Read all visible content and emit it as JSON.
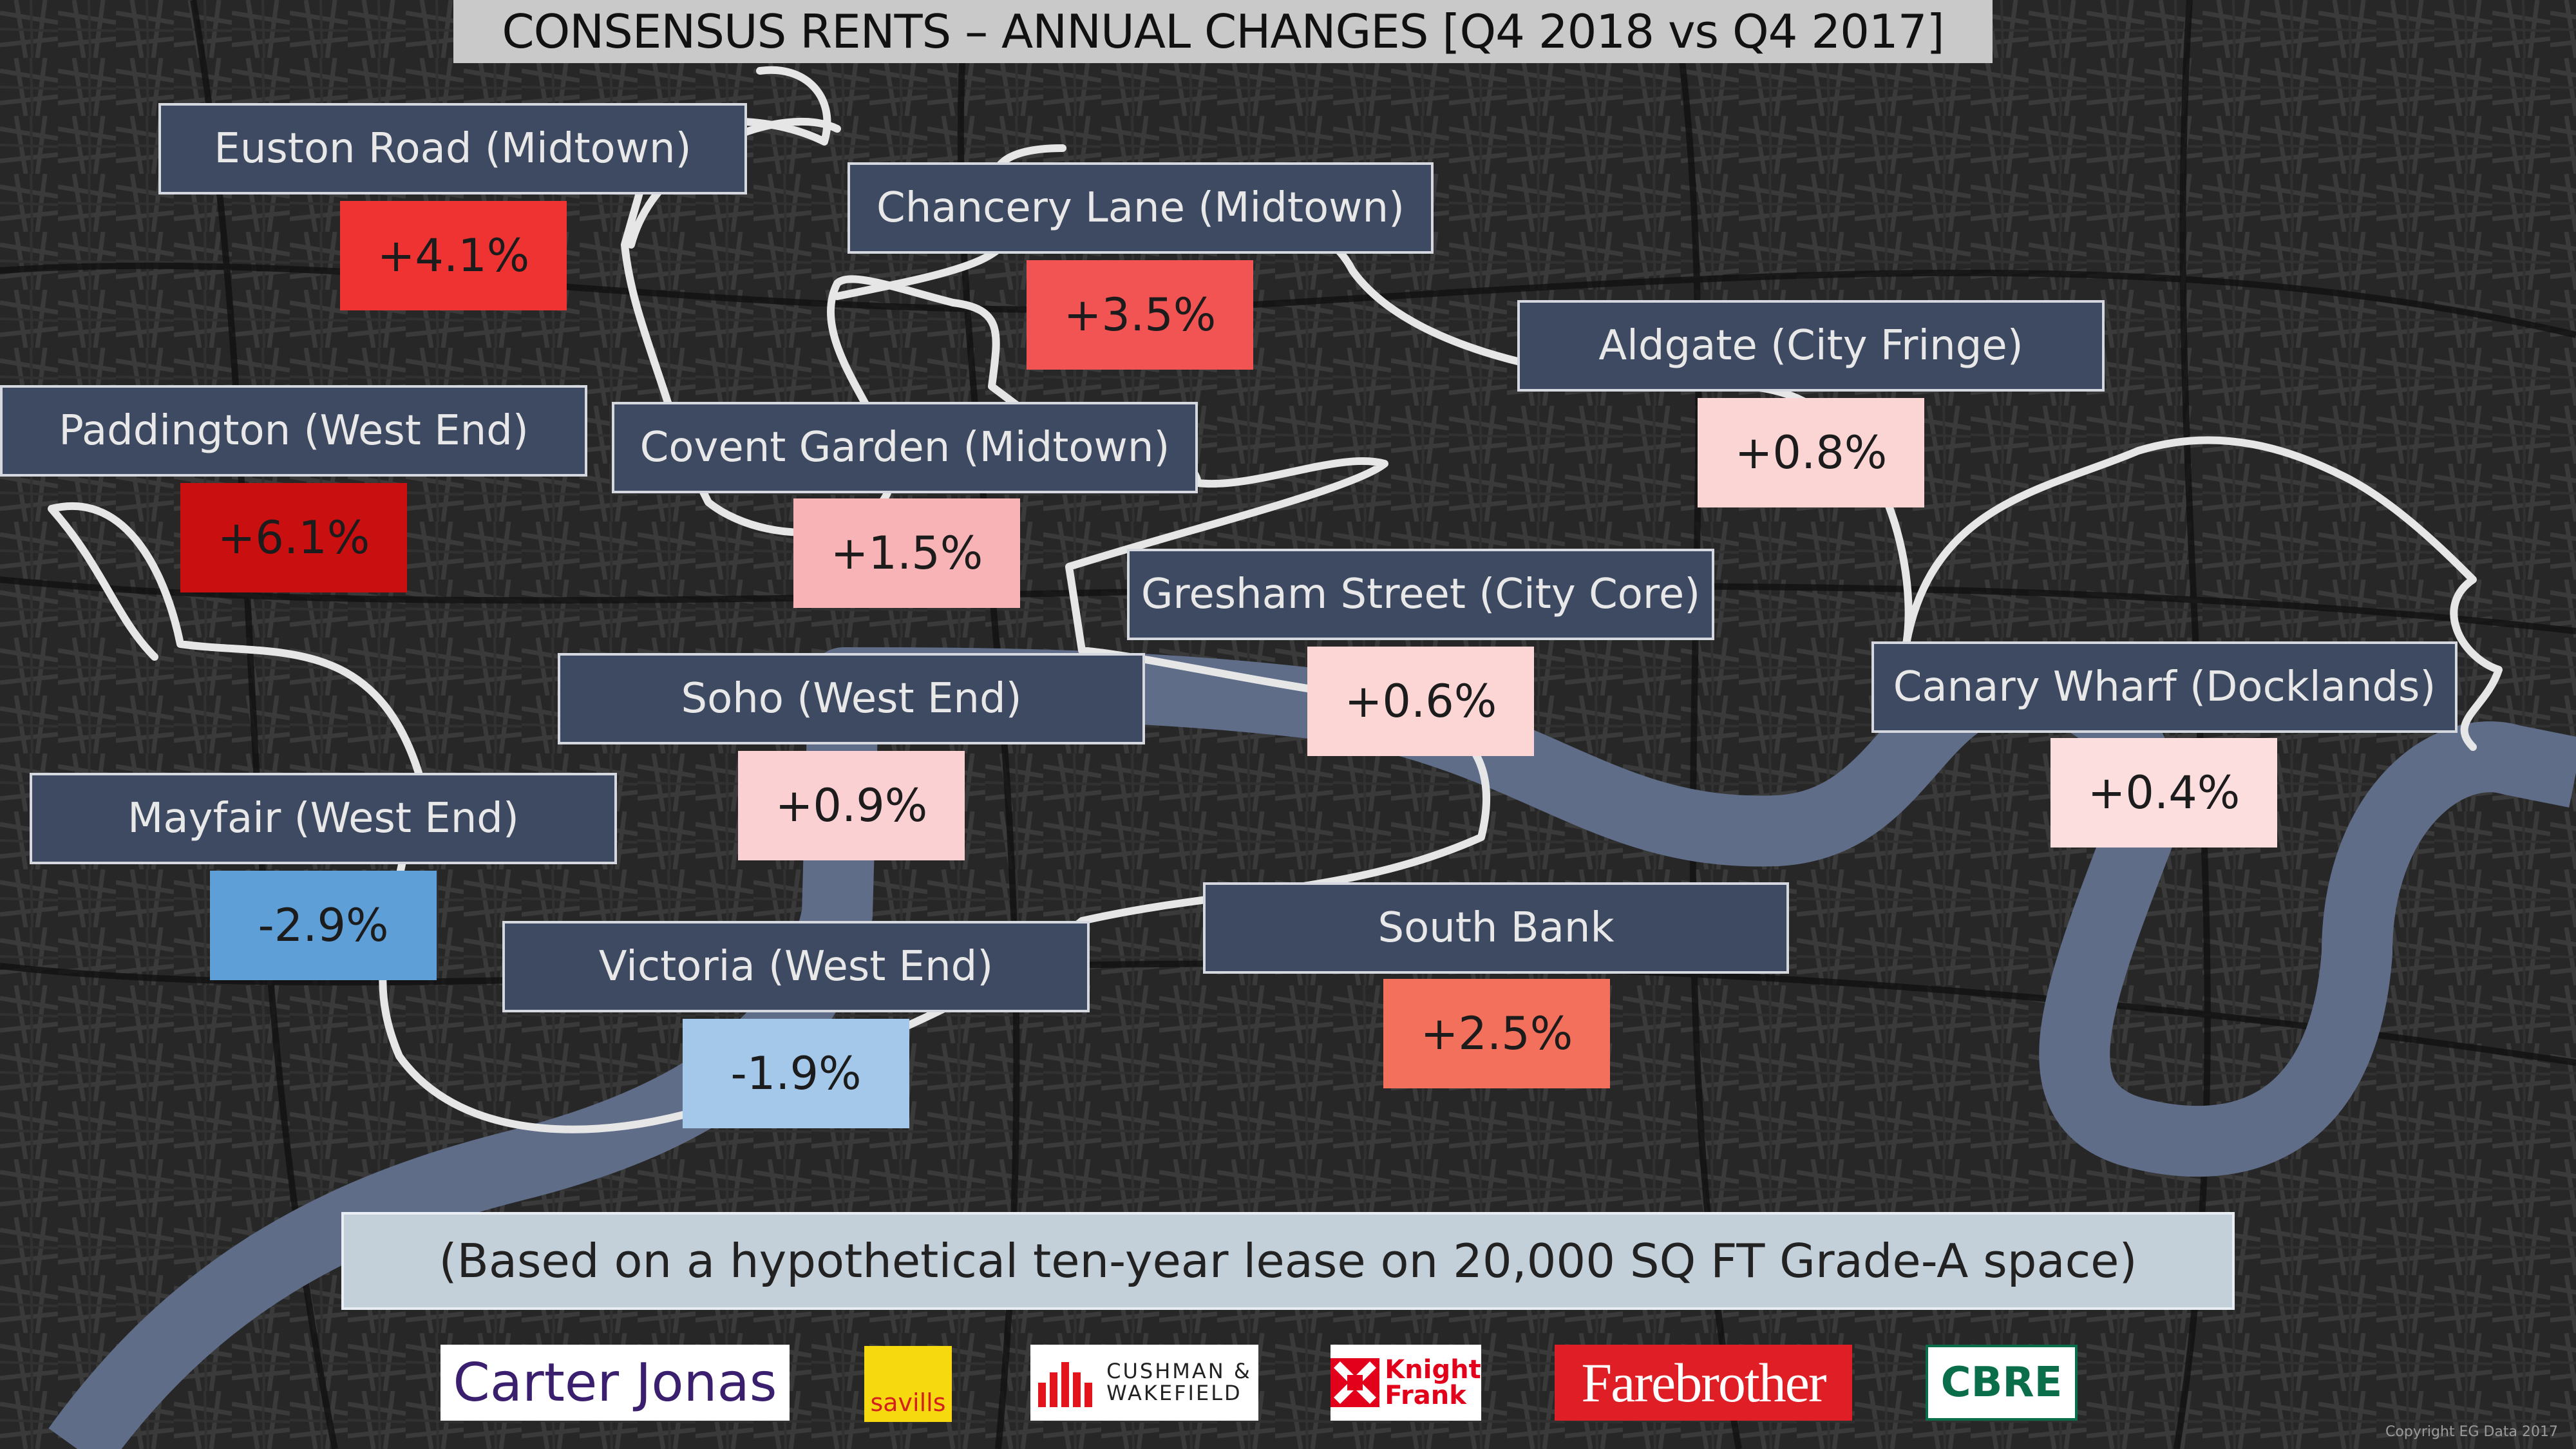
{
  "title": "CONSENSUS RENTS – ANNUAL CHANGES [Q4 2018 vs Q4 2017]",
  "colors": {
    "river": "#5f6d88",
    "boundary": "#e6e6e6",
    "name_box": "#3d4a61"
  },
  "areas": [
    {
      "name": "Euston Road (Midtown)",
      "change": "+4.1%",
      "color": "#ef3333"
    },
    {
      "name": "Chancery Lane (Midtown)",
      "change": "+3.5%",
      "color": "#f25353"
    },
    {
      "name": "Paddington (West End)",
      "change": "+6.1%",
      "color": "#c90f0f"
    },
    {
      "name": "Covent Garden (Midtown)",
      "change": "+1.5%",
      "color": "#f7b3b6"
    },
    {
      "name": "Aldgate (City Fringe)",
      "change": "+0.8%",
      "color": "#fbd4d4"
    },
    {
      "name": "Gresham Street (City Core)",
      "change": "+0.6%",
      "color": "#fbd6d5"
    },
    {
      "name": "Soho (West End)",
      "change": "+0.9%",
      "color": "#fad0d2"
    },
    {
      "name": "Canary Wharf (Docklands)",
      "change": "+0.4%",
      "color": "#fcdedf"
    },
    {
      "name": "Mayfair (West End)",
      "change": "-2.9%",
      "color": "#5f9fd8"
    },
    {
      "name": "South Bank",
      "change": "+2.5%",
      "color": "#f2705c"
    },
    {
      "name": "Victoria (West End)",
      "change": "-1.9%",
      "color": "#a4c8ea"
    }
  ],
  "note": "(Based on a hypothetical ten-year lease on 20,000 SQ FT Grade-A space)",
  "logos": {
    "carter_jonas": "Carter Jonas",
    "savills": "savills",
    "cushman_line1": "CUSHMAN &",
    "cushman_line2": "WAKEFIELD",
    "knight_line1": "Knight",
    "knight_line2": "Frank",
    "farebrother": "Farebrother",
    "cbre": "CBRE"
  },
  "copyright": "Copyright EG Data 2017"
}
